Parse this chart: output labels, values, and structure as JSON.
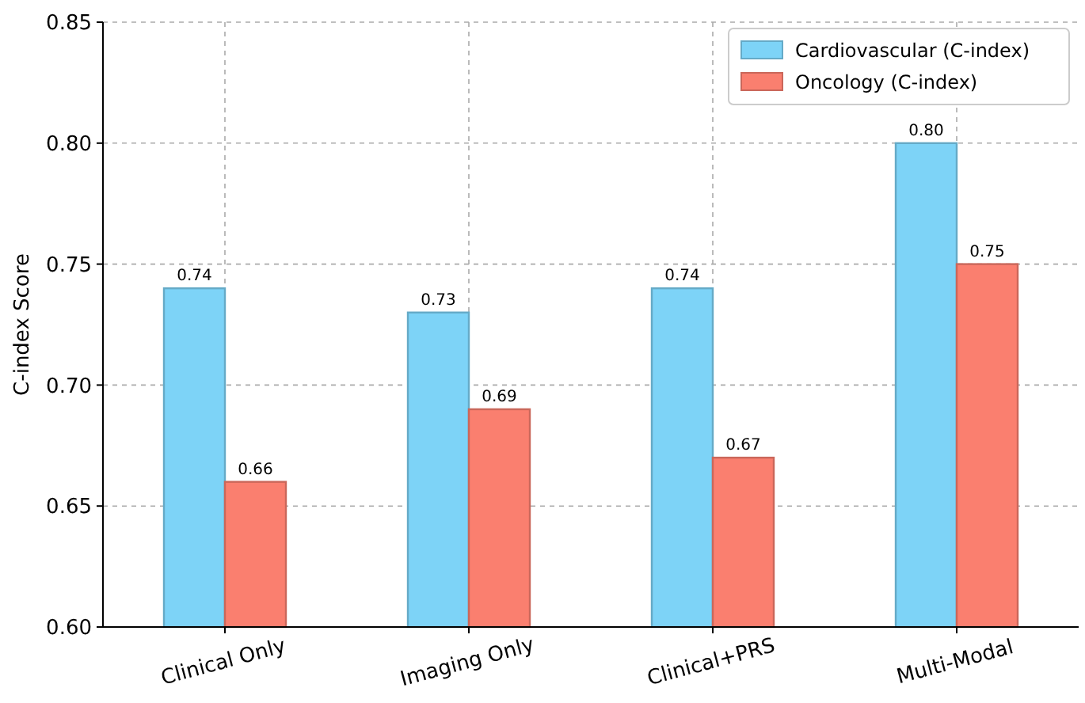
{
  "chart_data": {
    "type": "bar",
    "ylabel": "C-index Score",
    "categories": [
      "Clinical Only",
      "Imaging Only",
      "Clinical+PRS",
      "Multi-Modal"
    ],
    "series": [
      {
        "name": "Cardiovascular (C-index)",
        "color": "#7dd3f7",
        "values": [
          0.74,
          0.73,
          0.74,
          0.8
        ],
        "value_labels": [
          "0.74",
          "0.73",
          "0.74",
          "0.80"
        ]
      },
      {
        "name": "Oncology (C-index)",
        "color": "#fa7f6f",
        "values": [
          0.66,
          0.69,
          0.67,
          0.75
        ],
        "value_labels": [
          "0.66",
          "0.69",
          "0.67",
          "0.75"
        ]
      }
    ],
    "ylim": [
      0.6,
      0.85
    ],
    "yticks": [
      {
        "value": 0.6,
        "label": "0.60"
      },
      {
        "value": 0.65,
        "label": "0.65"
      },
      {
        "value": 0.7,
        "label": "0.70"
      },
      {
        "value": 0.75,
        "label": "0.75"
      },
      {
        "value": 0.8,
        "label": "0.80"
      },
      {
        "value": 0.85,
        "label": "0.85"
      }
    ],
    "grid": true,
    "legend": "top right"
  }
}
